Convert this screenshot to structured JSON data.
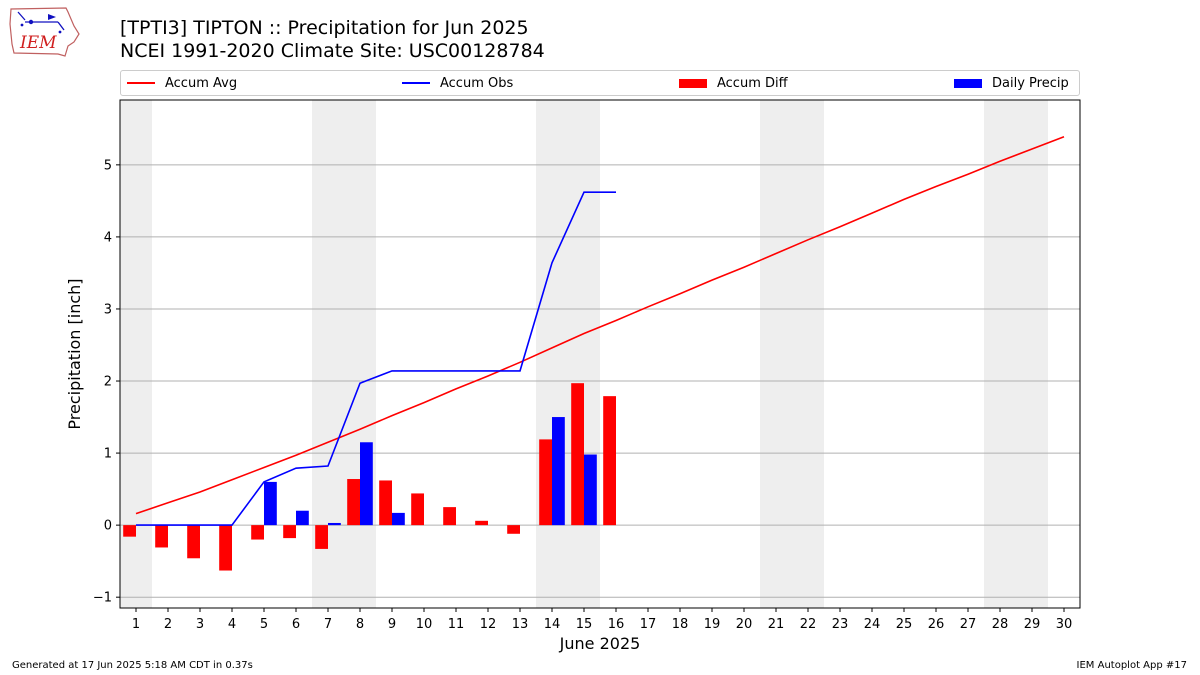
{
  "header": {
    "title_line1": "[TPTI3] TIPTON :: Precipitation for Jun 2025",
    "title_line2": "NCEI 1991-2020 Climate Site: USC00128784",
    "logo_text": "IEM"
  },
  "legend": {
    "accum_avg": "Accum Avg",
    "accum_obs": "Accum Obs",
    "accum_diff": "Accum Diff",
    "daily_precip": "Daily Precip"
  },
  "footer": {
    "generated": "Generated at 17 Jun 2025 5:18 AM CDT in 0.37s",
    "app": "IEM Autoplot App #17"
  },
  "colors": {
    "accum_avg": "#ff0000",
    "accum_obs": "#0000ff",
    "accum_diff": "#ff0000",
    "daily_precip": "#0000ff",
    "weekend_shade": "#eeeeee",
    "grid": "#b0b0b0"
  },
  "chart_data": {
    "type": "bar",
    "xlabel": "June 2025",
    "ylabel": "Precipitation [inch]",
    "xlim": [
      0.5,
      30.5
    ],
    "ylim": [
      -1.15,
      5.9
    ],
    "yticks": [
      -1,
      0,
      1,
      2,
      3,
      4,
      5
    ],
    "y_grid": true,
    "legend_position": "top",
    "days": [
      1,
      2,
      3,
      4,
      5,
      6,
      7,
      8,
      9,
      10,
      11,
      12,
      13,
      14,
      15,
      16,
      17,
      18,
      19,
      20,
      21,
      22,
      23,
      24,
      25,
      26,
      27,
      28,
      29,
      30
    ],
    "weekend_days": [
      1,
      7,
      8,
      14,
      15,
      21,
      22,
      28,
      29
    ],
    "series": [
      {
        "name": "Accum Avg",
        "kind": "line",
        "x": [
          1,
          2,
          3,
          4,
          5,
          6,
          7,
          8,
          9,
          10,
          11,
          12,
          13,
          14,
          15,
          16,
          17,
          18,
          19,
          20,
          21,
          22,
          23,
          24,
          25,
          26,
          27,
          28,
          29,
          30
        ],
        "values": [
          0.16,
          0.31,
          0.46,
          0.63,
          0.8,
          0.97,
          1.15,
          1.33,
          1.52,
          1.7,
          1.89,
          2.07,
          2.26,
          2.46,
          2.66,
          2.84,
          3.03,
          3.21,
          3.4,
          3.58,
          3.77,
          3.96,
          4.14,
          4.33,
          4.52,
          4.7,
          4.87,
          5.05,
          5.22,
          5.39
        ]
      },
      {
        "name": "Accum Obs",
        "kind": "line",
        "x": [
          1,
          2,
          3,
          4,
          5,
          6,
          7,
          8,
          9,
          10,
          11,
          12,
          13,
          14,
          15,
          16
        ],
        "values": [
          0.0,
          0.0,
          0.0,
          0.0,
          0.6,
          0.79,
          0.82,
          1.97,
          2.14,
          2.14,
          2.14,
          2.14,
          2.14,
          3.64,
          4.62,
          4.62
        ]
      },
      {
        "name": "Accum Diff",
        "kind": "bar",
        "x": [
          1,
          2,
          3,
          4,
          5,
          6,
          7,
          8,
          9,
          10,
          11,
          12,
          13,
          14,
          15,
          16
        ],
        "values": [
          -0.16,
          -0.31,
          -0.46,
          -0.63,
          -0.2,
          -0.18,
          -0.33,
          0.64,
          0.62,
          0.44,
          0.25,
          0.06,
          -0.12,
          1.19,
          1.97,
          1.79
        ]
      },
      {
        "name": "Daily Precip",
        "kind": "bar",
        "x": [
          1,
          2,
          3,
          4,
          5,
          6,
          7,
          8,
          9,
          10,
          11,
          12,
          13,
          14,
          15,
          16
        ],
        "values": [
          0,
          0,
          0,
          0,
          0.6,
          0.2,
          0.03,
          1.15,
          0.17,
          0,
          0,
          0,
          0,
          1.5,
          0.98,
          0
        ]
      }
    ]
  }
}
